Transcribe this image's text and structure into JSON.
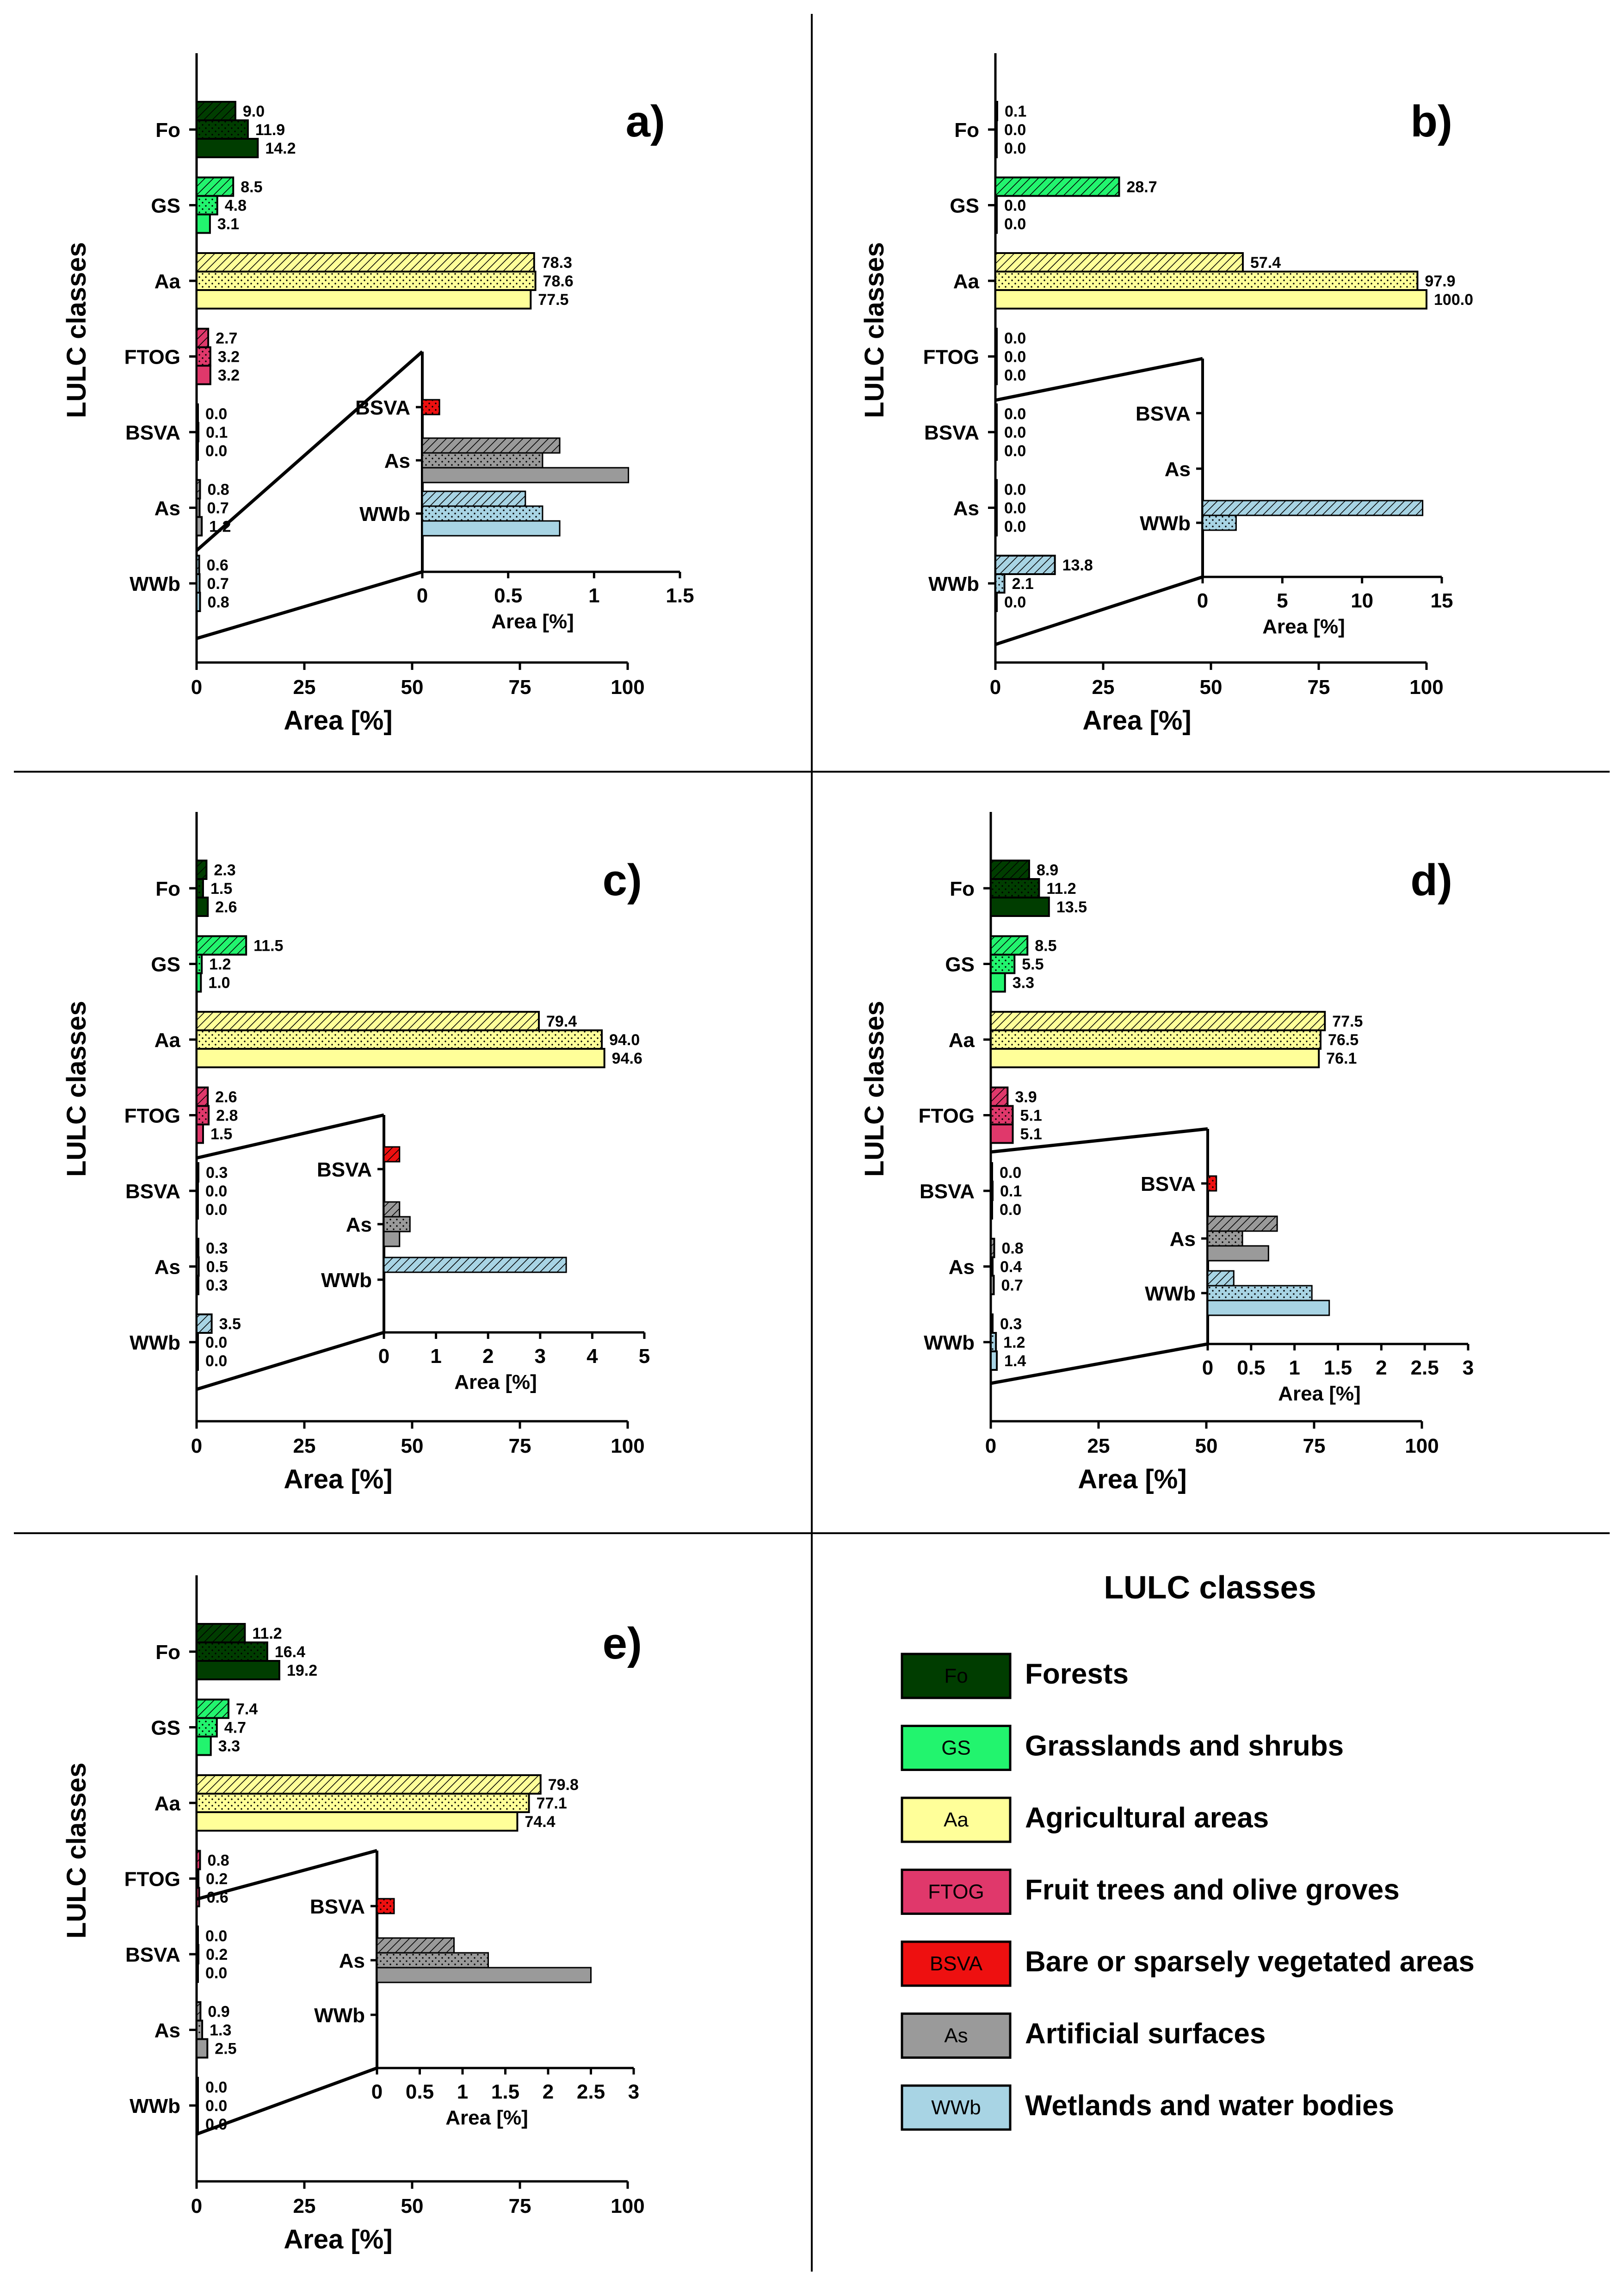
{
  "colors": {
    "Fo": "#003d00",
    "GS": "#22f46e",
    "Aa": "#ffff99",
    "FTOG": "#e0386b",
    "BSVA": "#ee1010",
    "As": "#9a9a9a",
    "WWb": "#a8d4e4"
  },
  "legend": {
    "title": "LULC classes",
    "items": [
      {
        "code": "Fo",
        "label": "Forests"
      },
      {
        "code": "GS",
        "label": "Grasslands and shrubs"
      },
      {
        "code": "Aa",
        "label": "Agricultural areas"
      },
      {
        "code": "FTOG",
        "label": "Fruit trees and olive groves"
      },
      {
        "code": "BSVA",
        "label": "Bare or sparsely vegetated areas"
      },
      {
        "code": "As",
        "label": "Artificial surfaces"
      },
      {
        "code": "WWb",
        "label": "Wetlands and water bodies"
      }
    ]
  },
  "chart_data": [
    {
      "type": "bar",
      "panel": "a)",
      "ylabel": "LULC classes",
      "xlabel": "Area [%]",
      "xlim": [
        0,
        100
      ],
      "xticks": [
        "0",
        "25",
        "50",
        "75",
        "100"
      ],
      "categories": [
        "Fo",
        "GS",
        "Aa",
        "FTOG",
        "BSVA",
        "As",
        "WWb"
      ],
      "series": [
        {
          "name": "hatched",
          "values": [
            9.0,
            8.5,
            78.3,
            2.7,
            0.0,
            0.8,
            0.6
          ]
        },
        {
          "name": "dotted",
          "values": [
            11.9,
            4.8,
            78.6,
            3.2,
            0.1,
            0.7,
            0.7
          ]
        },
        {
          "name": "solid",
          "values": [
            14.2,
            3.1,
            77.5,
            3.2,
            0.0,
            1.2,
            0.8
          ]
        }
      ],
      "labels": [
        [
          "9.0",
          "11.9",
          "14.2"
        ],
        [
          "8.5",
          "4.8",
          "3.1"
        ],
        [
          "78.3",
          "78.6",
          "77.5"
        ],
        [
          "2.7",
          "3.2",
          "3.2"
        ],
        [
          "0.0",
          "0.1",
          "0.0"
        ],
        [
          "0.8",
          "0.7",
          "1.2"
        ],
        [
          "0.6",
          "0.7",
          "0.8"
        ]
      ],
      "inset": {
        "xlabel": "Area [%]",
        "xlim": [
          0,
          1.5
        ],
        "xticks": [
          "0",
          "0.5",
          "1",
          "1.5"
        ],
        "categories": [
          "BSVA",
          "As",
          "WWb"
        ],
        "values": [
          [
            0.0,
            0.1,
            0.0
          ],
          [
            0.8,
            0.7,
            1.2
          ],
          [
            0.6,
            0.7,
            0.8
          ]
        ]
      }
    },
    {
      "type": "bar",
      "panel": "b)",
      "ylabel": "LULC classes",
      "xlabel": "Area [%]",
      "xlim": [
        0,
        100
      ],
      "xticks": [
        "0",
        "25",
        "50",
        "75",
        "100"
      ],
      "categories": [
        "Fo",
        "GS",
        "Aa",
        "FTOG",
        "BSVA",
        "As",
        "WWb"
      ],
      "series": [
        {
          "name": "hatched",
          "values": [
            0.1,
            28.7,
            57.4,
            0.0,
            0.0,
            0.0,
            13.8
          ]
        },
        {
          "name": "dotted",
          "values": [
            0.0,
            0.0,
            97.9,
            0.0,
            0.0,
            0.0,
            2.1
          ]
        },
        {
          "name": "solid",
          "values": [
            0.0,
            0.0,
            100.0,
            0.0,
            0.0,
            0.0,
            0.0
          ]
        }
      ],
      "labels": [
        [
          "0.1",
          "0.0",
          "0.0"
        ],
        [
          "28.7",
          "0.0",
          "0.0"
        ],
        [
          "57.4",
          "97.9",
          "100.0"
        ],
        [
          "0.0",
          "0.0",
          "0.0"
        ],
        [
          "0.0",
          "0.0",
          "0.0"
        ],
        [
          "0.0",
          "0.0",
          "0.0"
        ],
        [
          "13.8",
          "2.1",
          "0.0"
        ]
      ],
      "inset": {
        "xlabel": "Area [%]",
        "xlim": [
          0,
          15
        ],
        "xticks": [
          "0",
          "5",
          "10",
          "15"
        ],
        "categories": [
          "BSVA",
          "As",
          "WWb"
        ],
        "values": [
          [
            0.0,
            0.0,
            0.0
          ],
          [
            0.0,
            0.0,
            0.0
          ],
          [
            13.8,
            2.1,
            0.0
          ]
        ]
      }
    },
    {
      "type": "bar",
      "panel": "c)",
      "ylabel": "LULC classes",
      "xlabel": "Area [%]",
      "xlim": [
        0,
        100
      ],
      "xticks": [
        "0",
        "25",
        "50",
        "75",
        "100"
      ],
      "categories": [
        "Fo",
        "GS",
        "Aa",
        "FTOG",
        "BSVA",
        "As",
        "WWb"
      ],
      "series": [
        {
          "name": "hatched",
          "values": [
            2.3,
            11.5,
            79.4,
            2.6,
            0.3,
            0.3,
            3.5
          ]
        },
        {
          "name": "dotted",
          "values": [
            1.5,
            1.2,
            94.0,
            2.8,
            0.0,
            0.5,
            0.0
          ]
        },
        {
          "name": "solid",
          "values": [
            2.6,
            1.0,
            94.6,
            1.5,
            0.0,
            0.3,
            0.0
          ]
        }
      ],
      "labels": [
        [
          "2.3",
          "1.5",
          "2.6"
        ],
        [
          "11.5",
          "1.2",
          "1.0"
        ],
        [
          "79.4",
          "94.0",
          "94.6"
        ],
        [
          "2.6",
          "2.8",
          "1.5"
        ],
        [
          "0.3",
          "0.0",
          "0.0"
        ],
        [
          "0.3",
          "0.5",
          "0.3"
        ],
        [
          "3.5",
          "0.0",
          "0.0"
        ]
      ],
      "inset": {
        "xlabel": "Area [%]",
        "xlim": [
          0,
          5
        ],
        "xticks": [
          "0",
          "1",
          "2",
          "3",
          "4",
          "5"
        ],
        "categories": [
          "BSVA",
          "As",
          "WWb"
        ],
        "values": [
          [
            0.3,
            0.0,
            0.0
          ],
          [
            0.3,
            0.5,
            0.3
          ],
          [
            3.5,
            0.0,
            0.0
          ]
        ]
      }
    },
    {
      "type": "bar",
      "panel": "d)",
      "ylabel": "LULC classes",
      "xlabel": "Area [%]",
      "xlim": [
        0,
        100
      ],
      "xticks": [
        "0",
        "25",
        "50",
        "75",
        "100"
      ],
      "categories": [
        "Fo",
        "GS",
        "Aa",
        "FTOG",
        "BSVA",
        "As",
        "WWb"
      ],
      "series": [
        {
          "name": "hatched",
          "values": [
            8.9,
            8.5,
            77.5,
            3.9,
            0.0,
            0.8,
            0.3
          ]
        },
        {
          "name": "dotted",
          "values": [
            11.2,
            5.5,
            76.5,
            5.1,
            0.1,
            0.4,
            1.2
          ]
        },
        {
          "name": "solid",
          "values": [
            13.5,
            3.3,
            76.1,
            5.1,
            0.0,
            0.7,
            1.4
          ]
        }
      ],
      "labels": [
        [
          "8.9",
          "11.2",
          "13.5"
        ],
        [
          "8.5",
          "5.5",
          "3.3"
        ],
        [
          "77.5",
          "76.5",
          "76.1"
        ],
        [
          "3.9",
          "5.1",
          "5.1"
        ],
        [
          "0.0",
          "0.1",
          "0.0"
        ],
        [
          "0.8",
          "0.4",
          "0.7"
        ],
        [
          "0.3",
          "1.2",
          "1.4"
        ]
      ],
      "inset": {
        "xlabel": "Area [%]",
        "xlim": [
          0,
          3
        ],
        "xticks": [
          "0",
          "0.5",
          "1",
          "1.5",
          "2",
          "2.5",
          "3"
        ],
        "categories": [
          "BSVA",
          "As",
          "WWb"
        ],
        "values": [
          [
            0.0,
            0.1,
            0.0
          ],
          [
            0.8,
            0.4,
            0.7
          ],
          [
            0.3,
            1.2,
            1.4
          ]
        ]
      }
    },
    {
      "type": "bar",
      "panel": "e)",
      "ylabel": "LULC classes",
      "xlabel": "Area [%]",
      "xlim": [
        0,
        100
      ],
      "xticks": [
        "0",
        "25",
        "50",
        "75",
        "100"
      ],
      "categories": [
        "Fo",
        "GS",
        "Aa",
        "FTOG",
        "BSVA",
        "As",
        "WWb"
      ],
      "series": [
        {
          "name": "hatched",
          "values": [
            11.2,
            7.4,
            79.8,
            0.8,
            0.0,
            0.9,
            0.0
          ]
        },
        {
          "name": "dotted",
          "values": [
            16.4,
            4.7,
            77.1,
            0.2,
            0.2,
            1.3,
            0.0
          ]
        },
        {
          "name": "solid",
          "values": [
            19.2,
            3.3,
            74.4,
            0.6,
            0.0,
            2.5,
            0.0
          ]
        }
      ],
      "labels": [
        [
          "11.2",
          "16.4",
          "19.2"
        ],
        [
          "7.4",
          "4.7",
          "3.3"
        ],
        [
          "79.8",
          "77.1",
          "74.4"
        ],
        [
          "0.8",
          "0.2",
          "0.6"
        ],
        [
          "0.0",
          "0.2",
          "0.0"
        ],
        [
          "0.9",
          "1.3",
          "2.5"
        ],
        [
          "0.0",
          "0.0",
          "0.0"
        ]
      ],
      "inset": {
        "xlabel": "Area [%]",
        "xlim": [
          0,
          3
        ],
        "xticks": [
          "0",
          "0.5",
          "1",
          "1.5",
          "2",
          "2.5",
          "3"
        ],
        "categories": [
          "BSVA",
          "As",
          "WWb"
        ],
        "values": [
          [
            0.0,
            0.2,
            0.0
          ],
          [
            0.9,
            1.3,
            2.5
          ],
          [
            0.0,
            0.0,
            0.0
          ]
        ]
      }
    }
  ]
}
